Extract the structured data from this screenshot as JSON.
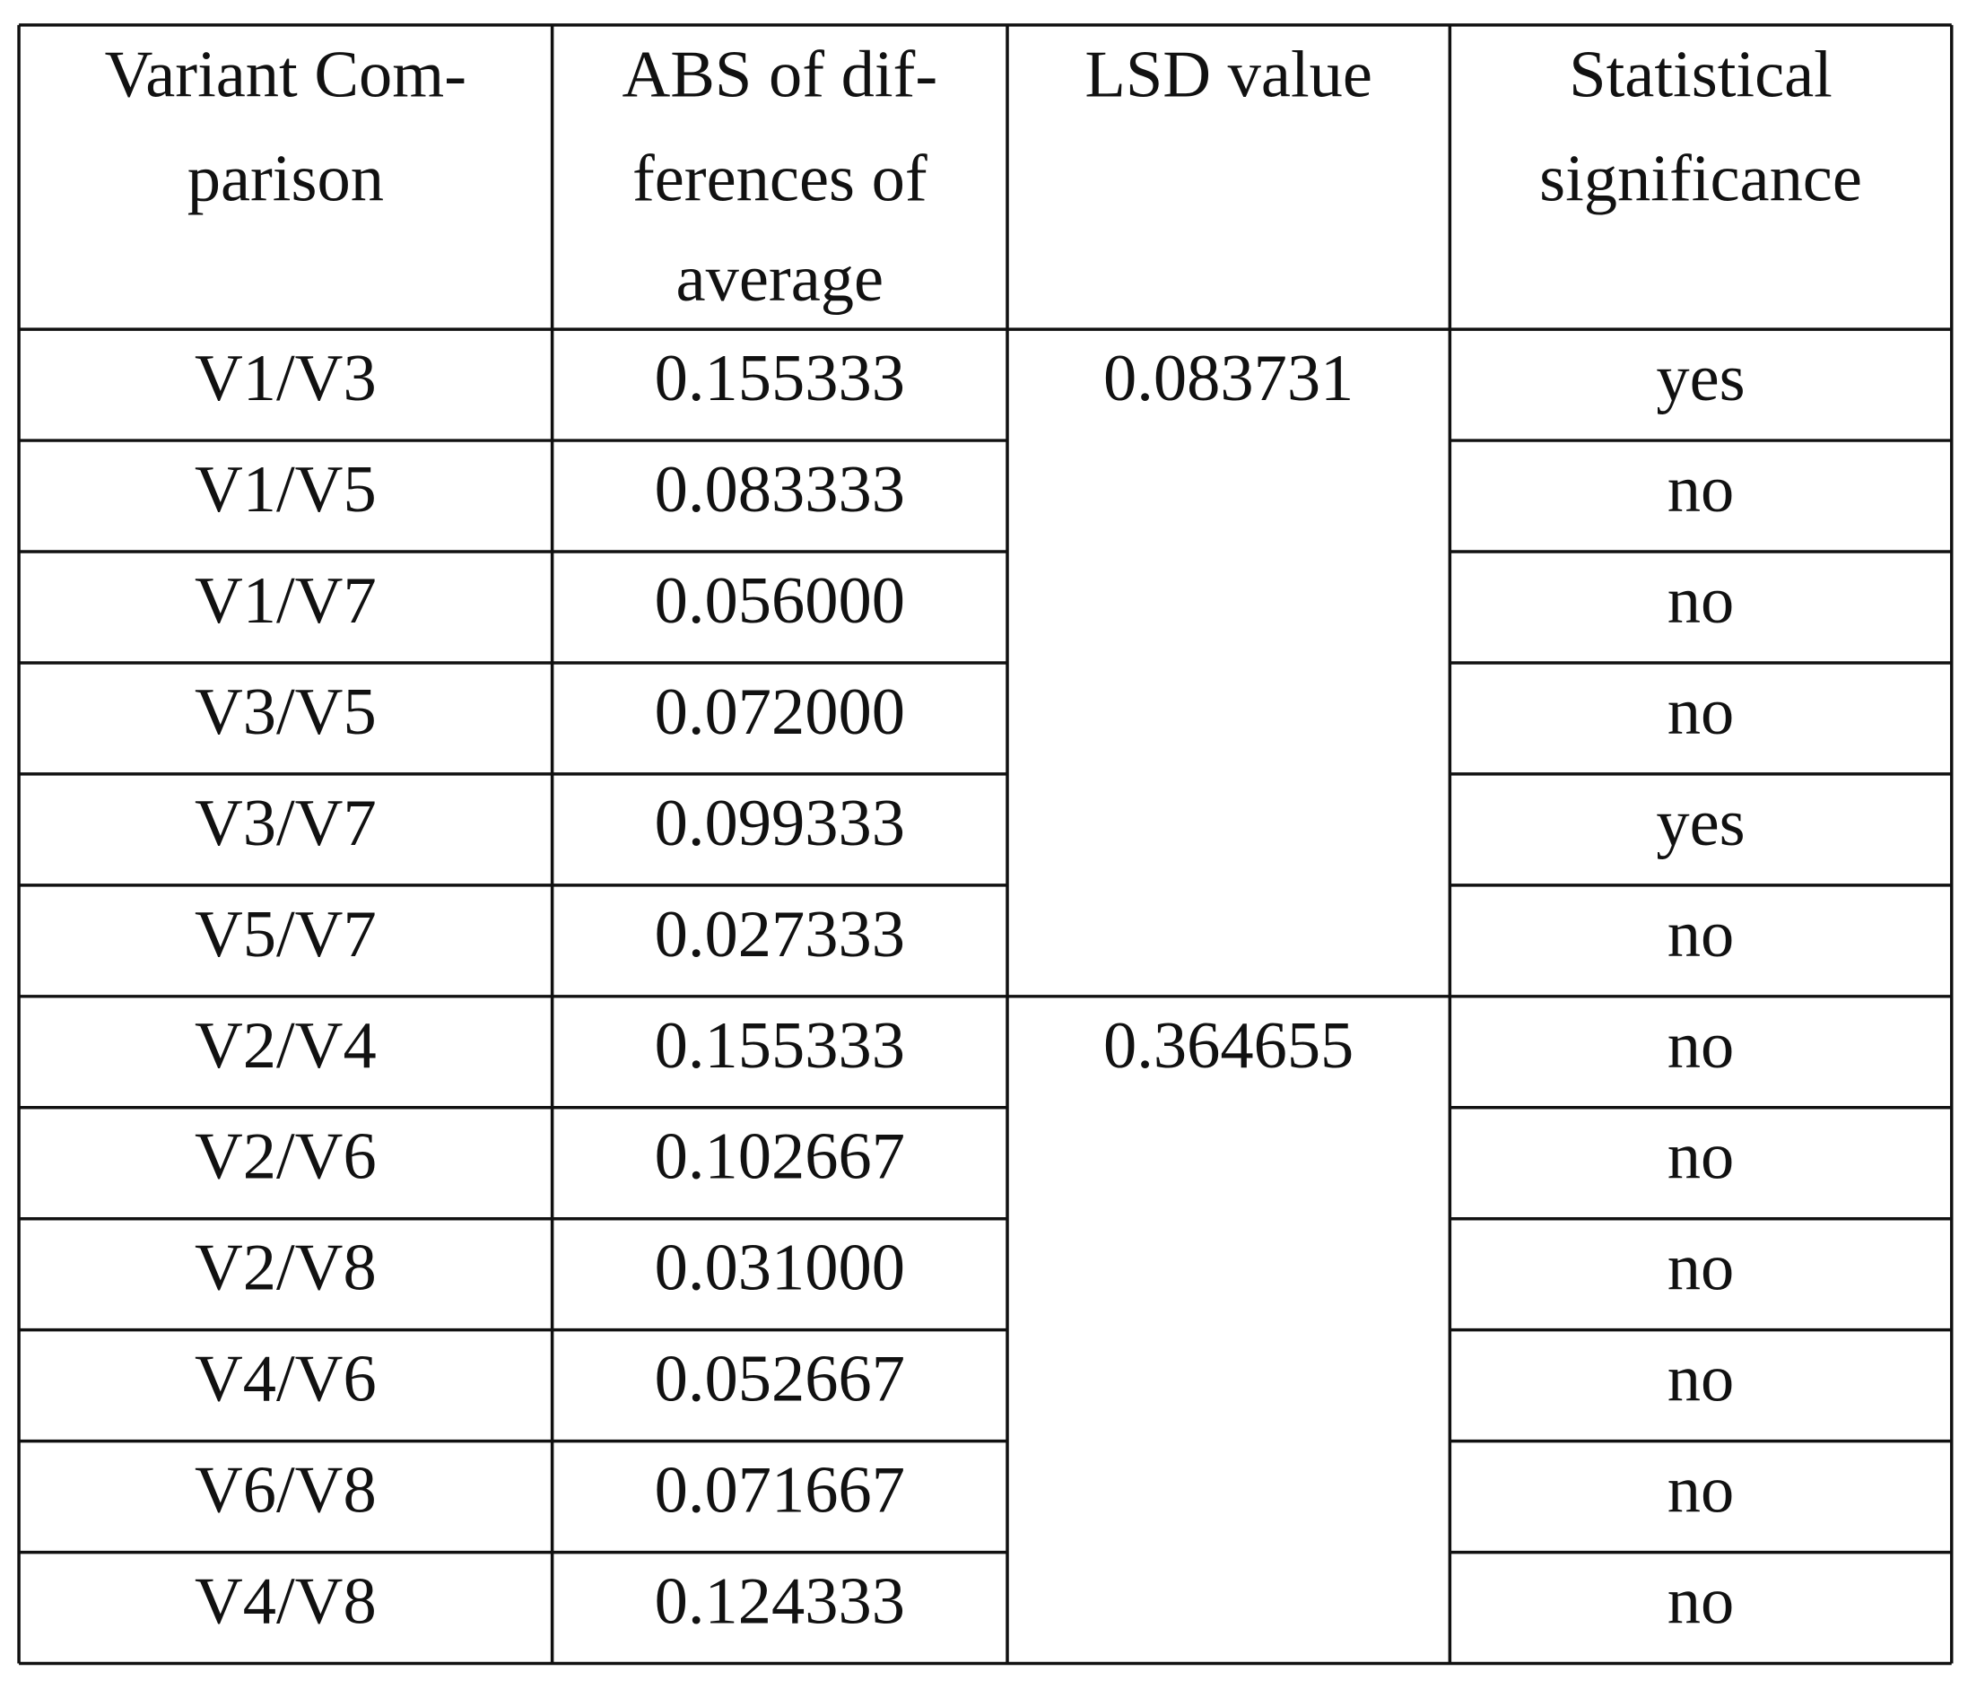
{
  "table": {
    "header": [
      [
        "Variant Com-",
        "parison"
      ],
      [
        "ABS of dif-",
        "ferences of",
        "average"
      ],
      [
        "LSD value"
      ],
      [
        "Statistical",
        "significance"
      ]
    ],
    "groups": [
      {
        "lsd": "0.083731",
        "rows": [
          [
            "V1/V3",
            "0.155333",
            "yes"
          ],
          [
            "V1/V5",
            "0.083333",
            "no"
          ],
          [
            "V1/V7",
            "0.056000",
            "no"
          ],
          [
            "V3/V5",
            "0.072000",
            "no"
          ],
          [
            "V3/V7",
            "0.099333",
            "yes"
          ],
          [
            "V5/V7",
            "0.027333",
            "no"
          ]
        ]
      },
      {
        "lsd": "0.364655",
        "rows": [
          [
            "V2/V4",
            "0.155333",
            "no"
          ],
          [
            "V2/V6",
            "0.102667",
            "no"
          ],
          [
            "V2/V8",
            "0.031000",
            "no"
          ],
          [
            "V4/V6",
            "0.052667",
            "no"
          ],
          [
            "V6/V8",
            "0.071667",
            "no"
          ],
          [
            "V4/V8",
            "0.124333",
            "no"
          ]
        ]
      }
    ]
  }
}
